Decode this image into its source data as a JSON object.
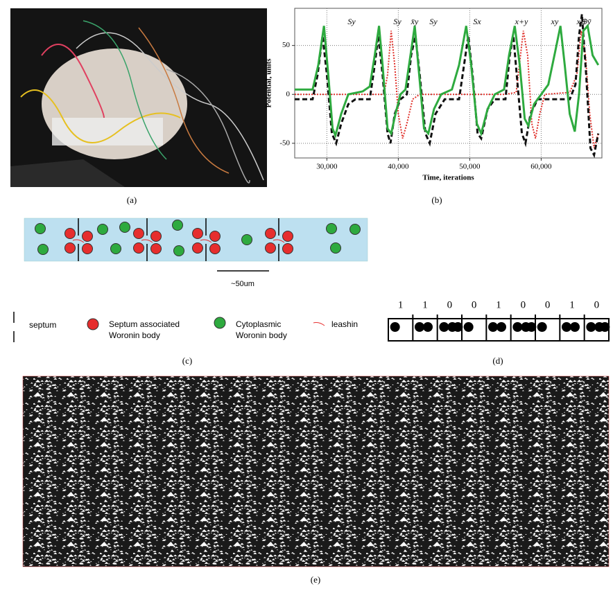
{
  "captions": {
    "a": "(a)",
    "b": "(b)",
    "c": "(c)",
    "d": "(d)",
    "e": "(e)"
  },
  "chart_data": {
    "type": "line",
    "xlabel": "Time, iterations",
    "ylabel": "Potential, units",
    "xlim": [
      25500,
      68500
    ],
    "ylim": [
      -65,
      88
    ],
    "xticks": [
      {
        "value": 30000,
        "label": "30,000"
      },
      {
        "value": 40000,
        "label": "40,000"
      },
      {
        "value": 50000,
        "label": "50,000"
      },
      {
        "value": 60000,
        "label": "60,000"
      }
    ],
    "yticks": [
      -50,
      0,
      50
    ],
    "grid": true,
    "annotations": [
      "Sy",
      "Sy",
      "x̄y",
      "Sy",
      "Sx",
      "x+y",
      "xy",
      "x⊕ȳ"
    ],
    "series": [
      {
        "color": "#2eaa3f",
        "style": "solid",
        "x": [
          25500,
          28000,
          28800,
          29600,
          30200,
          30800,
          31200,
          32000,
          33000,
          35000,
          36000,
          36700,
          37300,
          37800,
          38500,
          39000,
          39600,
          40300,
          41000,
          41700,
          42300,
          42800,
          43600,
          44200,
          45000,
          46000,
          47500,
          48500,
          49500,
          50200,
          51000,
          51600,
          52500,
          53500,
          54800,
          55500,
          56300,
          57000,
          57700,
          58200,
          59000,
          60000,
          61000,
          62000,
          62700,
          63300,
          64000,
          64700,
          65300,
          65900,
          66500,
          67200,
          68000
        ],
        "values": [
          5,
          5,
          30,
          70,
          20,
          -35,
          -42,
          -20,
          0,
          3,
          8,
          40,
          70,
          30,
          -35,
          -40,
          -20,
          0,
          5,
          40,
          70,
          30,
          -35,
          -40,
          -15,
          0,
          5,
          30,
          70,
          30,
          -30,
          -40,
          -15,
          0,
          5,
          40,
          70,
          30,
          -25,
          -32,
          -10,
          0,
          10,
          45,
          70,
          30,
          -20,
          -38,
          0,
          65,
          70,
          40,
          30
        ]
      },
      {
        "color": "#111111",
        "style": "dashed",
        "x": [
          25500,
          28000,
          28700,
          29400,
          30000,
          30700,
          31300,
          32000,
          33000,
          34000,
          36000,
          36700,
          37200,
          37800,
          38500,
          38900,
          39500,
          40300,
          41200,
          41800,
          42400,
          43000,
          43800,
          44400,
          45200,
          46500,
          48500,
          49200,
          49800,
          50400,
          51100,
          51600,
          52500,
          53500,
          55000,
          55600,
          56100,
          56700,
          57300,
          57800,
          58500,
          59500,
          64000,
          64800,
          65300,
          65700,
          66300,
          66900,
          67400,
          68000
        ],
        "values": [
          -5,
          -5,
          20,
          60,
          20,
          -40,
          -50,
          -30,
          -10,
          -5,
          -5,
          30,
          60,
          20,
          -40,
          -50,
          -20,
          -5,
          0,
          40,
          60,
          20,
          -40,
          -50,
          -20,
          -5,
          -5,
          30,
          60,
          20,
          -40,
          -45,
          -15,
          -5,
          -5,
          40,
          60,
          10,
          -40,
          -50,
          -20,
          -5,
          -5,
          10,
          60,
          82,
          20,
          -55,
          -62,
          -40
        ]
      },
      {
        "color": "#e0302a",
        "style": "dotted",
        "x": [
          25500,
          38000,
          38500,
          39000,
          39500,
          40000,
          40600,
          41200,
          42000,
          43000,
          55000,
          56500,
          57500,
          58100,
          58700,
          59200,
          59800,
          60500,
          64000,
          65000,
          65600,
          66200,
          66800,
          67400,
          68000
        ],
        "values": [
          0,
          0,
          20,
          65,
          30,
          -20,
          -45,
          -30,
          -5,
          0,
          0,
          2,
          65,
          40,
          -30,
          -45,
          -20,
          0,
          2,
          20,
          65,
          40,
          -20,
          -55,
          -40
        ]
      }
    ]
  },
  "diagram": {
    "scale": "~50um",
    "legend": [
      "septum",
      "Septum associated",
      "Woronin body",
      "Cytoplasmic",
      "Woronin body",
      "leashin"
    ],
    "bits": [
      1,
      1,
      0,
      0,
      1,
      0,
      0,
      1,
      0
    ]
  }
}
